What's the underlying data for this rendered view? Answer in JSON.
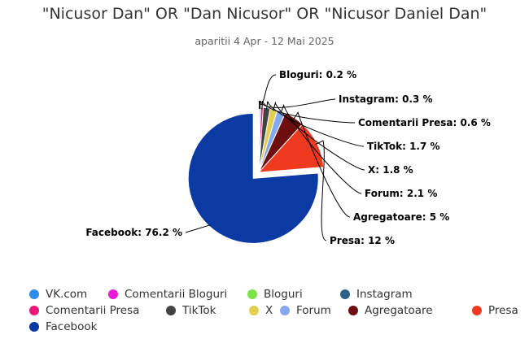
{
  "chart_data": {
    "type": "pie",
    "title": "\"Nicusor Dan\" OR \"Dan Nicusor\" OR \"Nicusor Daniel Dan\"",
    "subtitle": "aparitii 4 Apr - 12 Mai 2025",
    "slices": [
      {
        "name": "VK.com",
        "value": 0.0,
        "color": "#2f8ce8",
        "label": ""
      },
      {
        "name": "Comentarii Bloguri",
        "value": 0.0,
        "color": "#e81ad8",
        "label": ""
      },
      {
        "name": "Bloguri",
        "value": 0.2,
        "color": "#7ee24a",
        "label": "Bloguri: 0.2 %"
      },
      {
        "name": "Instagram",
        "value": 0.3,
        "color": "#2e5f86",
        "label": "Instagram: 0.3 %"
      },
      {
        "name": "Comentarii Presa",
        "value": 0.6,
        "color": "#e8187a",
        "label": "Comentarii Presa: 0.6 %"
      },
      {
        "name": "TikTok",
        "value": 1.7,
        "color": "#434343",
        "label": "TikTok: 1.7 %"
      },
      {
        "name": "X",
        "value": 1.8,
        "color": "#e2cf4f",
        "label": "X: 1.8 %"
      },
      {
        "name": "Forum",
        "value": 2.1,
        "color": "#86a8ef",
        "label": "Forum: 2.1 %"
      },
      {
        "name": "Agregatoare",
        "value": 5,
        "color": "#6e0f0f",
        "label": "Agregatoare: 5 %"
      },
      {
        "name": "Presa",
        "value": 12,
        "color": "#ef3a1f",
        "label": "Presa: 12 %"
      },
      {
        "name": "Facebook",
        "value": 76.2,
        "color": "#0b3aa3",
        "label": "Facebook: 76.2 %"
      }
    ],
    "legend_placement": "bottom-left"
  },
  "legend": {
    "rows": [
      [
        "VK.com",
        "Comentarii Bloguri",
        "Bloguri",
        "Instagram"
      ],
      [
        "Comentarii Presa",
        "TikTok",
        "X",
        "Forum",
        "Agregatoare",
        "Presa"
      ],
      [
        "Facebook"
      ]
    ]
  }
}
